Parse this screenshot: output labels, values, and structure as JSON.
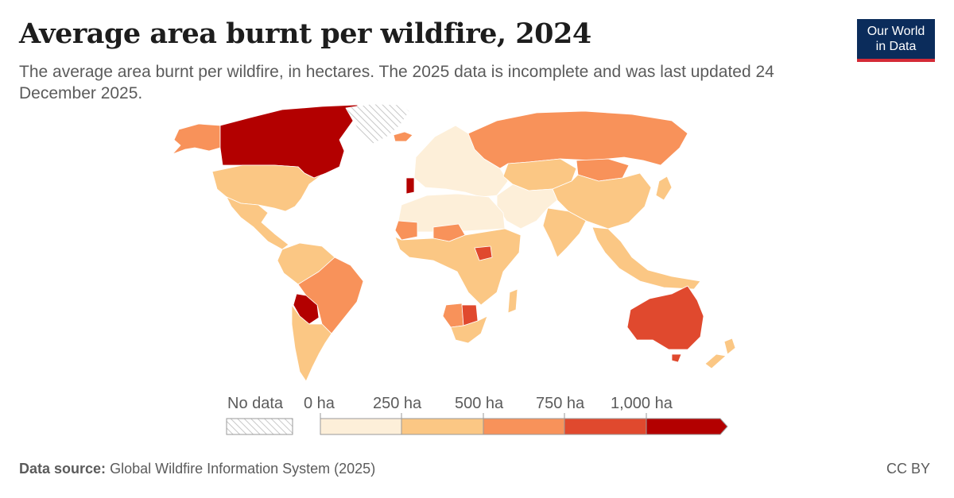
{
  "title": "Average area burnt per wildfire, 2024",
  "subtitle": "The average area burnt per wildfire, in hectares. The 2025 data is incomplete and was last updated 24 December 2025.",
  "logo": {
    "line1": "Our World",
    "line2": "in Data"
  },
  "legend": {
    "no_data_label": "No data",
    "ticks": [
      "0 ha",
      "250 ha",
      "500 ha",
      "750 ha",
      "1,000 ha"
    ],
    "colors": [
      "#fdefd9",
      "#fbc784",
      "#f8925a",
      "#e0492e",
      "#b30000"
    ]
  },
  "footer": {
    "source_label": "Data source:",
    "source_text": "Global Wildfire Information System (2025)",
    "license": "CC BY"
  },
  "map_data": {
    "regions": [
      {
        "name": "Canada",
        "bin": 4
      },
      {
        "name": "Portugal",
        "bin": 4
      },
      {
        "name": "Bolivia",
        "bin": 4
      },
      {
        "name": "Australia",
        "bin": 3
      },
      {
        "name": "Botswana",
        "bin": 3
      },
      {
        "name": "South Sudan",
        "bin": 3
      },
      {
        "name": "Russia",
        "bin": 2
      },
      {
        "name": "Brazil",
        "bin": 2
      },
      {
        "name": "Mongolia",
        "bin": 2
      },
      {
        "name": "Mauritania",
        "bin": 2
      },
      {
        "name": "Niger",
        "bin": 2
      },
      {
        "name": "Namibia",
        "bin": 2
      },
      {
        "name": "Alaska",
        "bin": 2
      },
      {
        "name": "Iceland",
        "bin": 2
      },
      {
        "name": "United States",
        "bin": 1
      },
      {
        "name": "Mexico",
        "bin": 1
      },
      {
        "name": "China",
        "bin": 1
      },
      {
        "name": "India",
        "bin": 1
      },
      {
        "name": "Kazakhstan",
        "bin": 1
      },
      {
        "name": "Argentina",
        "bin": 1
      },
      {
        "name": "Africa (central)",
        "bin": 1
      },
      {
        "name": "Southeast Asia",
        "bin": 1
      },
      {
        "name": "Europe",
        "bin": 0
      },
      {
        "name": "North Africa",
        "bin": 0
      },
      {
        "name": "Middle East",
        "bin": 0
      },
      {
        "name": "Greenland",
        "bin": -1
      }
    ]
  }
}
